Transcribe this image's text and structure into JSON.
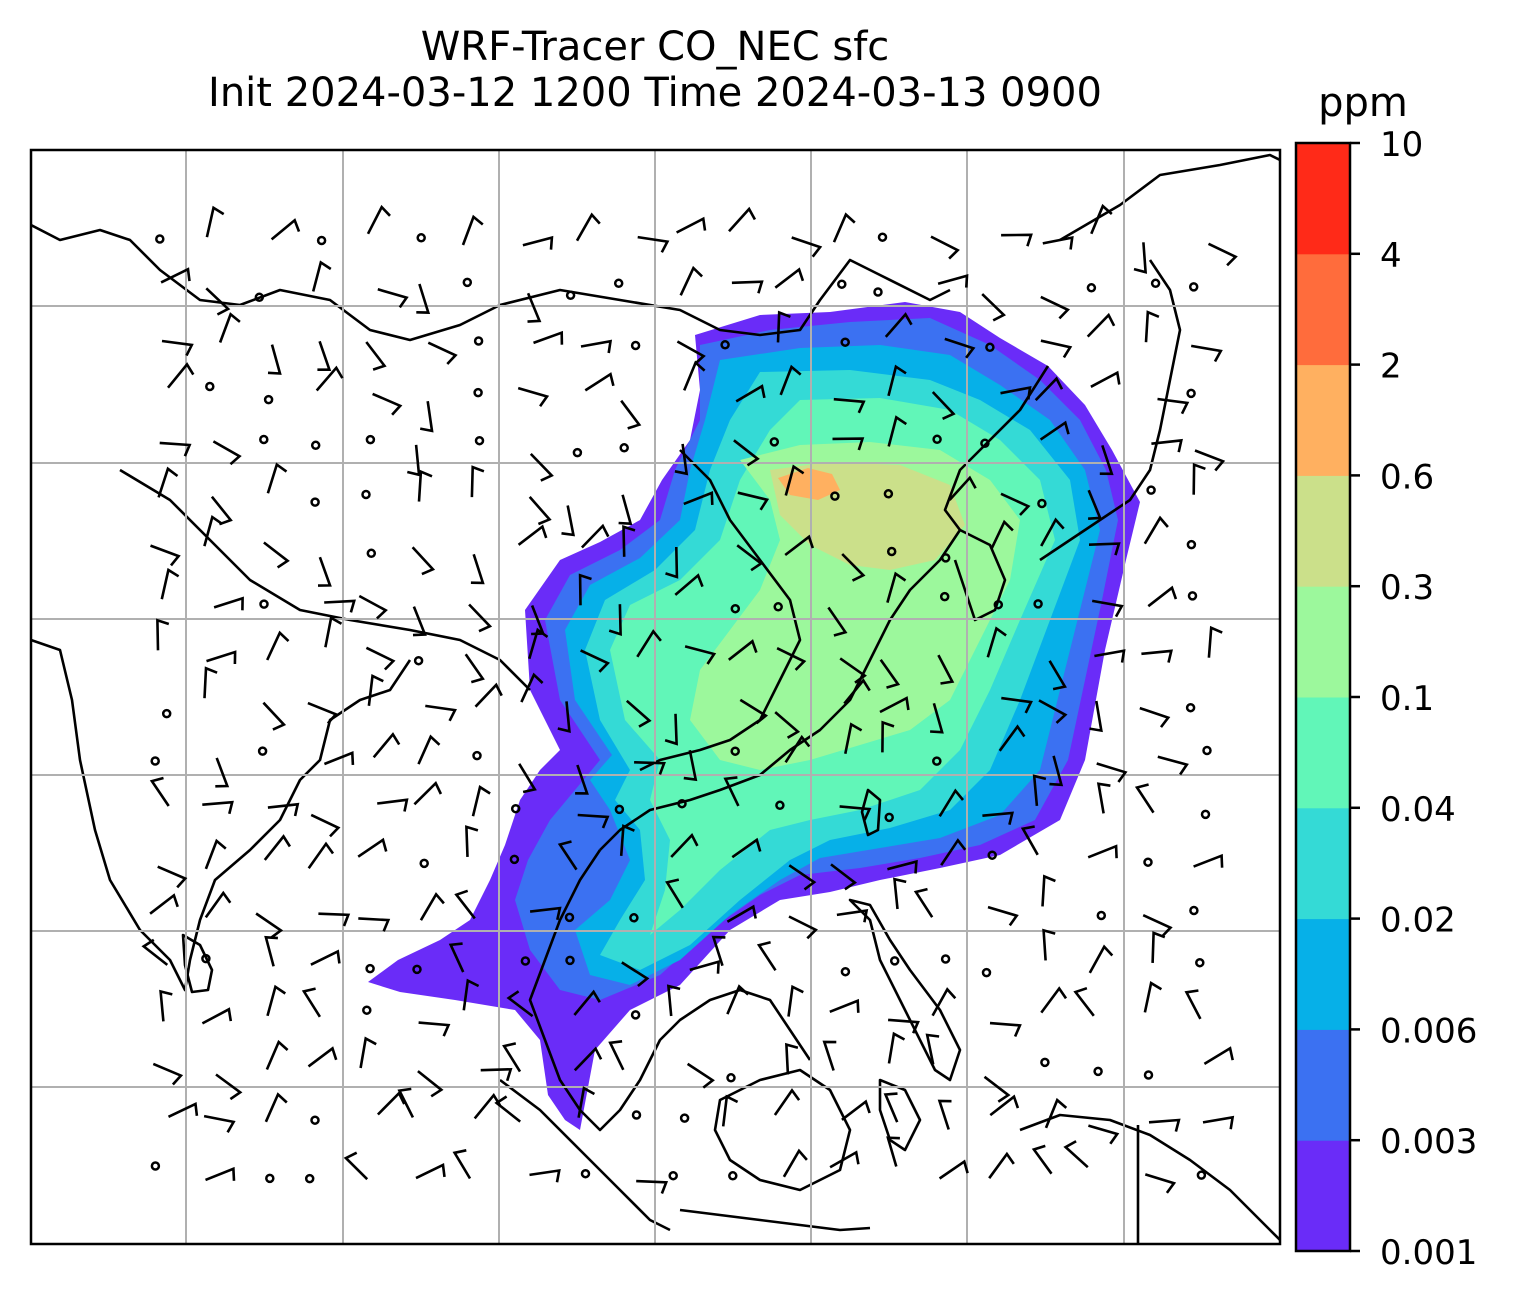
{
  "title": {
    "line1": "WRF-Tracer CO_NEC sfc",
    "line2": "Init 2024-03-12 1200 Time 2024-03-13 0900"
  },
  "colorbar": {
    "unit": "ppm",
    "levels": [
      "0.001",
      "0.003",
      "0.006",
      "0.02",
      "0.04",
      "0.1",
      "0.3",
      "0.6",
      "2",
      "4",
      "10"
    ],
    "colors": [
      "#6a2cf8",
      "#3b71f2",
      "#06b0e8",
      "#34dad6",
      "#61f6b8",
      "#9cf89c",
      "#cbe08a",
      "#ffb060",
      "#ff6c3c",
      "#ff2a18"
    ]
  },
  "map": {
    "gridlines": true,
    "wind_barbs": true,
    "colors": {
      "grid": "#b0b0b0",
      "coast": "#000000",
      "plume_outer": "#6a2cf8",
      "plume_blue": "#3b71f2",
      "plume_cyan": "#06b0e8",
      "plume_teal": "#34dad6",
      "plume_green": "#61f6b8",
      "plume_lightgreen": "#9cf89c",
      "plume_olive": "#cbe08a",
      "plume_orange": "#ffb060"
    }
  }
}
